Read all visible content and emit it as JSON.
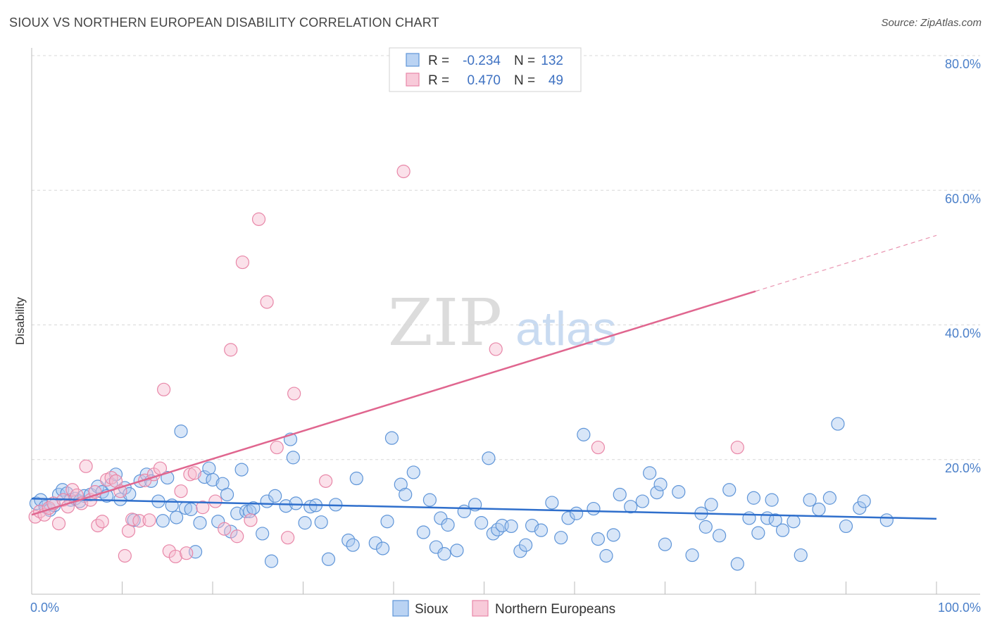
{
  "title": "SIOUX VS NORTHERN EUROPEAN DISABILITY CORRELATION CHART",
  "source": "Source: ZipAtlas.com",
  "watermark": {
    "zip": "ZIP",
    "atlas": "atlas"
  },
  "colors": {
    "sioux_fill": "#a9c8f0",
    "sioux_stroke": "#5f95d8",
    "sioux_line": "#2f6fcc",
    "ne_fill": "#f6bdd0",
    "ne_stroke": "#e887a8",
    "ne_line": "#e0668f",
    "grid": "#d8d8d8",
    "tick_label": "#4a7fc9"
  },
  "legend": {
    "rows": [
      {
        "r_label": "R =",
        "r_value": "-0.234",
        "n_label": "N =",
        "n_value": "132"
      },
      {
        "r_label": "R =",
        "r_value": "0.470",
        "n_label": "N =",
        "n_value": "49"
      }
    ]
  },
  "chart_data": {
    "type": "scatter",
    "title": "SIOUX VS NORTHERN EUROPEAN DISABILITY CORRELATION CHART",
    "xlabel": "",
    "ylabel": "Disability",
    "xlim": [
      0,
      100
    ],
    "ylim": [
      0,
      80
    ],
    "x_tick_labels": [
      "0.0%",
      "100.0%"
    ],
    "y_ticks": [
      20,
      40,
      60,
      80
    ],
    "y_tick_labels": [
      "20.0%",
      "40.0%",
      "60.0%",
      "80.0%"
    ],
    "grid": true,
    "legend_position": "bottom-center",
    "series": [
      {
        "name": "Sioux",
        "r": -0.234,
        "n": 132,
        "trend": {
          "x0": 0,
          "y0": 14.2,
          "x1": 100,
          "y1": 11.2
        },
        "points": [
          [
            0.5,
            13.5
          ],
          [
            1.0,
            14.0
          ],
          [
            1.5,
            13.0
          ],
          [
            2.0,
            12.5
          ],
          [
            2.5,
            13.2
          ],
          [
            3.0,
            14.8
          ],
          [
            3.4,
            15.5
          ],
          [
            3.9,
            15.0
          ],
          [
            4.3,
            14.0
          ],
          [
            4.8,
            14.2
          ],
          [
            5.3,
            13.8
          ],
          [
            5.8,
            14.6
          ],
          [
            6.5,
            14.8
          ],
          [
            7.3,
            16.0
          ],
          [
            7.8,
            15.2
          ],
          [
            8.3,
            14.6
          ],
          [
            8.8,
            16.3
          ],
          [
            9.3,
            17.8
          ],
          [
            9.8,
            14.1
          ],
          [
            10.3,
            15.8
          ],
          [
            10.8,
            14.9
          ],
          [
            11.3,
            11.0
          ],
          [
            12.0,
            16.8
          ],
          [
            12.7,
            17.8
          ],
          [
            13.2,
            16.8
          ],
          [
            14.0,
            13.8
          ],
          [
            14.5,
            10.9
          ],
          [
            15.0,
            17.3
          ],
          [
            15.5,
            13.2
          ],
          [
            16.0,
            11.4
          ],
          [
            16.5,
            24.2
          ],
          [
            17.0,
            12.8
          ],
          [
            17.6,
            12.6
          ],
          [
            18.1,
            6.3
          ],
          [
            18.6,
            10.6
          ],
          [
            19.1,
            17.4
          ],
          [
            19.6,
            18.7
          ],
          [
            20.0,
            17.0
          ],
          [
            20.6,
            10.8
          ],
          [
            21.1,
            16.4
          ],
          [
            21.6,
            14.8
          ],
          [
            22.0,
            9.3
          ],
          [
            22.7,
            12.0
          ],
          [
            23.2,
            18.5
          ],
          [
            23.7,
            12.3
          ],
          [
            24.1,
            12.3
          ],
          [
            24.5,
            12.8
          ],
          [
            25.5,
            9.0
          ],
          [
            26.0,
            13.8
          ],
          [
            26.5,
            4.9
          ],
          [
            26.9,
            14.6
          ],
          [
            28.1,
            13.1
          ],
          [
            28.6,
            23.0
          ],
          [
            28.9,
            20.3
          ],
          [
            29.2,
            13.5
          ],
          [
            30.2,
            10.6
          ],
          [
            30.8,
            13.0
          ],
          [
            31.4,
            13.2
          ],
          [
            32.0,
            10.7
          ],
          [
            32.8,
            5.2
          ],
          [
            33.6,
            13.3
          ],
          [
            35.0,
            8.0
          ],
          [
            35.5,
            7.3
          ],
          [
            35.9,
            17.2
          ],
          [
            38.0,
            7.6
          ],
          [
            38.8,
            6.8
          ],
          [
            39.3,
            10.8
          ],
          [
            39.8,
            23.2
          ],
          [
            40.8,
            16.3
          ],
          [
            41.3,
            14.8
          ],
          [
            42.2,
            18.1
          ],
          [
            43.3,
            9.2
          ],
          [
            44.0,
            14.0
          ],
          [
            44.7,
            7.0
          ],
          [
            45.2,
            11.3
          ],
          [
            45.6,
            6.0
          ],
          [
            46.0,
            10.3
          ],
          [
            47.0,
            6.5
          ],
          [
            47.8,
            12.3
          ],
          [
            49.0,
            13.3
          ],
          [
            49.7,
            10.6
          ],
          [
            50.5,
            20.2
          ],
          [
            51.0,
            9.0
          ],
          [
            51.5,
            9.6
          ],
          [
            52.0,
            10.2
          ],
          [
            53.0,
            10.1
          ],
          [
            54.0,
            6.4
          ],
          [
            54.6,
            7.3
          ],
          [
            55.3,
            10.2
          ],
          [
            56.3,
            9.5
          ],
          [
            57.5,
            13.6
          ],
          [
            58.5,
            8.4
          ],
          [
            59.3,
            11.3
          ],
          [
            60.2,
            12.0
          ],
          [
            61.0,
            23.7
          ],
          [
            62.1,
            12.7
          ],
          [
            62.6,
            8.2
          ],
          [
            63.5,
            5.7
          ],
          [
            64.3,
            8.8
          ],
          [
            65.0,
            14.8
          ],
          [
            66.2,
            13.0
          ],
          [
            67.5,
            13.8
          ],
          [
            68.3,
            18.0
          ],
          [
            69.1,
            15.1
          ],
          [
            69.5,
            16.3
          ],
          [
            70.0,
            7.4
          ],
          [
            71.5,
            15.2
          ],
          [
            73.0,
            5.8
          ],
          [
            74.0,
            12.0
          ],
          [
            74.5,
            10.0
          ],
          [
            75.1,
            13.3
          ],
          [
            76.0,
            8.7
          ],
          [
            77.1,
            15.5
          ],
          [
            78.0,
            4.5
          ],
          [
            79.3,
            11.3
          ],
          [
            79.8,
            14.3
          ],
          [
            80.3,
            9.1
          ],
          [
            81.3,
            11.3
          ],
          [
            81.8,
            14.0
          ],
          [
            82.2,
            11.0
          ],
          [
            83.0,
            9.5
          ],
          [
            84.2,
            10.8
          ],
          [
            85.0,
            5.8
          ],
          [
            86.0,
            14.0
          ],
          [
            87.0,
            12.6
          ],
          [
            88.2,
            14.3
          ],
          [
            89.1,
            25.3
          ],
          [
            90.0,
            10.1
          ],
          [
            91.5,
            12.8
          ],
          [
            92.0,
            13.8
          ],
          [
            94.5,
            11.0
          ]
        ]
      },
      {
        "name": "Northern Europeans",
        "r": 0.47,
        "n": 49,
        "trend": {
          "x0": 0,
          "y0": 11.8,
          "x1": 80,
          "y1": 45.0,
          "dash_to_x": 100,
          "dash_to_y": 53.3
        },
        "points": [
          [
            0.4,
            11.5
          ],
          [
            0.9,
            12.3
          ],
          [
            1.4,
            11.8
          ],
          [
            1.9,
            12.8
          ],
          [
            2.4,
            13.5
          ],
          [
            3.0,
            10.5
          ],
          [
            3.5,
            14.0
          ],
          [
            4.0,
            13.0
          ],
          [
            4.5,
            15.5
          ],
          [
            5.0,
            14.7
          ],
          [
            5.5,
            13.5
          ],
          [
            6.0,
            19.0
          ],
          [
            6.5,
            14.0
          ],
          [
            7.0,
            15.2
          ],
          [
            7.3,
            10.2
          ],
          [
            7.8,
            10.8
          ],
          [
            8.3,
            17.0
          ],
          [
            8.8,
            17.3
          ],
          [
            9.3,
            16.8
          ],
          [
            9.8,
            15.3
          ],
          [
            10.3,
            5.7
          ],
          [
            10.7,
            9.4
          ],
          [
            11.1,
            11.1
          ],
          [
            11.9,
            10.9
          ],
          [
            12.5,
            16.9
          ],
          [
            13.0,
            11.0
          ],
          [
            13.5,
            17.8
          ],
          [
            14.2,
            18.7
          ],
          [
            14.6,
            30.4
          ],
          [
            15.2,
            6.4
          ],
          [
            15.9,
            5.6
          ],
          [
            16.5,
            15.3
          ],
          [
            17.1,
            6.1
          ],
          [
            17.5,
            17.8
          ],
          [
            18.0,
            18.0
          ],
          [
            18.9,
            12.9
          ],
          [
            20.3,
            13.8
          ],
          [
            21.3,
            9.7
          ],
          [
            22.0,
            36.3
          ],
          [
            22.7,
            8.6
          ],
          [
            23.3,
            49.3
          ],
          [
            24.2,
            11.0
          ],
          [
            25.1,
            55.7
          ],
          [
            26.0,
            43.4
          ],
          [
            27.1,
            21.8
          ],
          [
            28.3,
            8.4
          ],
          [
            29.0,
            29.8
          ],
          [
            32.5,
            16.8
          ],
          [
            41.1,
            62.8
          ],
          [
            51.3,
            36.4
          ],
          [
            62.6,
            21.8
          ],
          [
            78.0,
            21.8
          ]
        ]
      }
    ]
  },
  "bottom_legend": [
    {
      "label": "Sioux"
    },
    {
      "label": "Northern Europeans"
    }
  ]
}
